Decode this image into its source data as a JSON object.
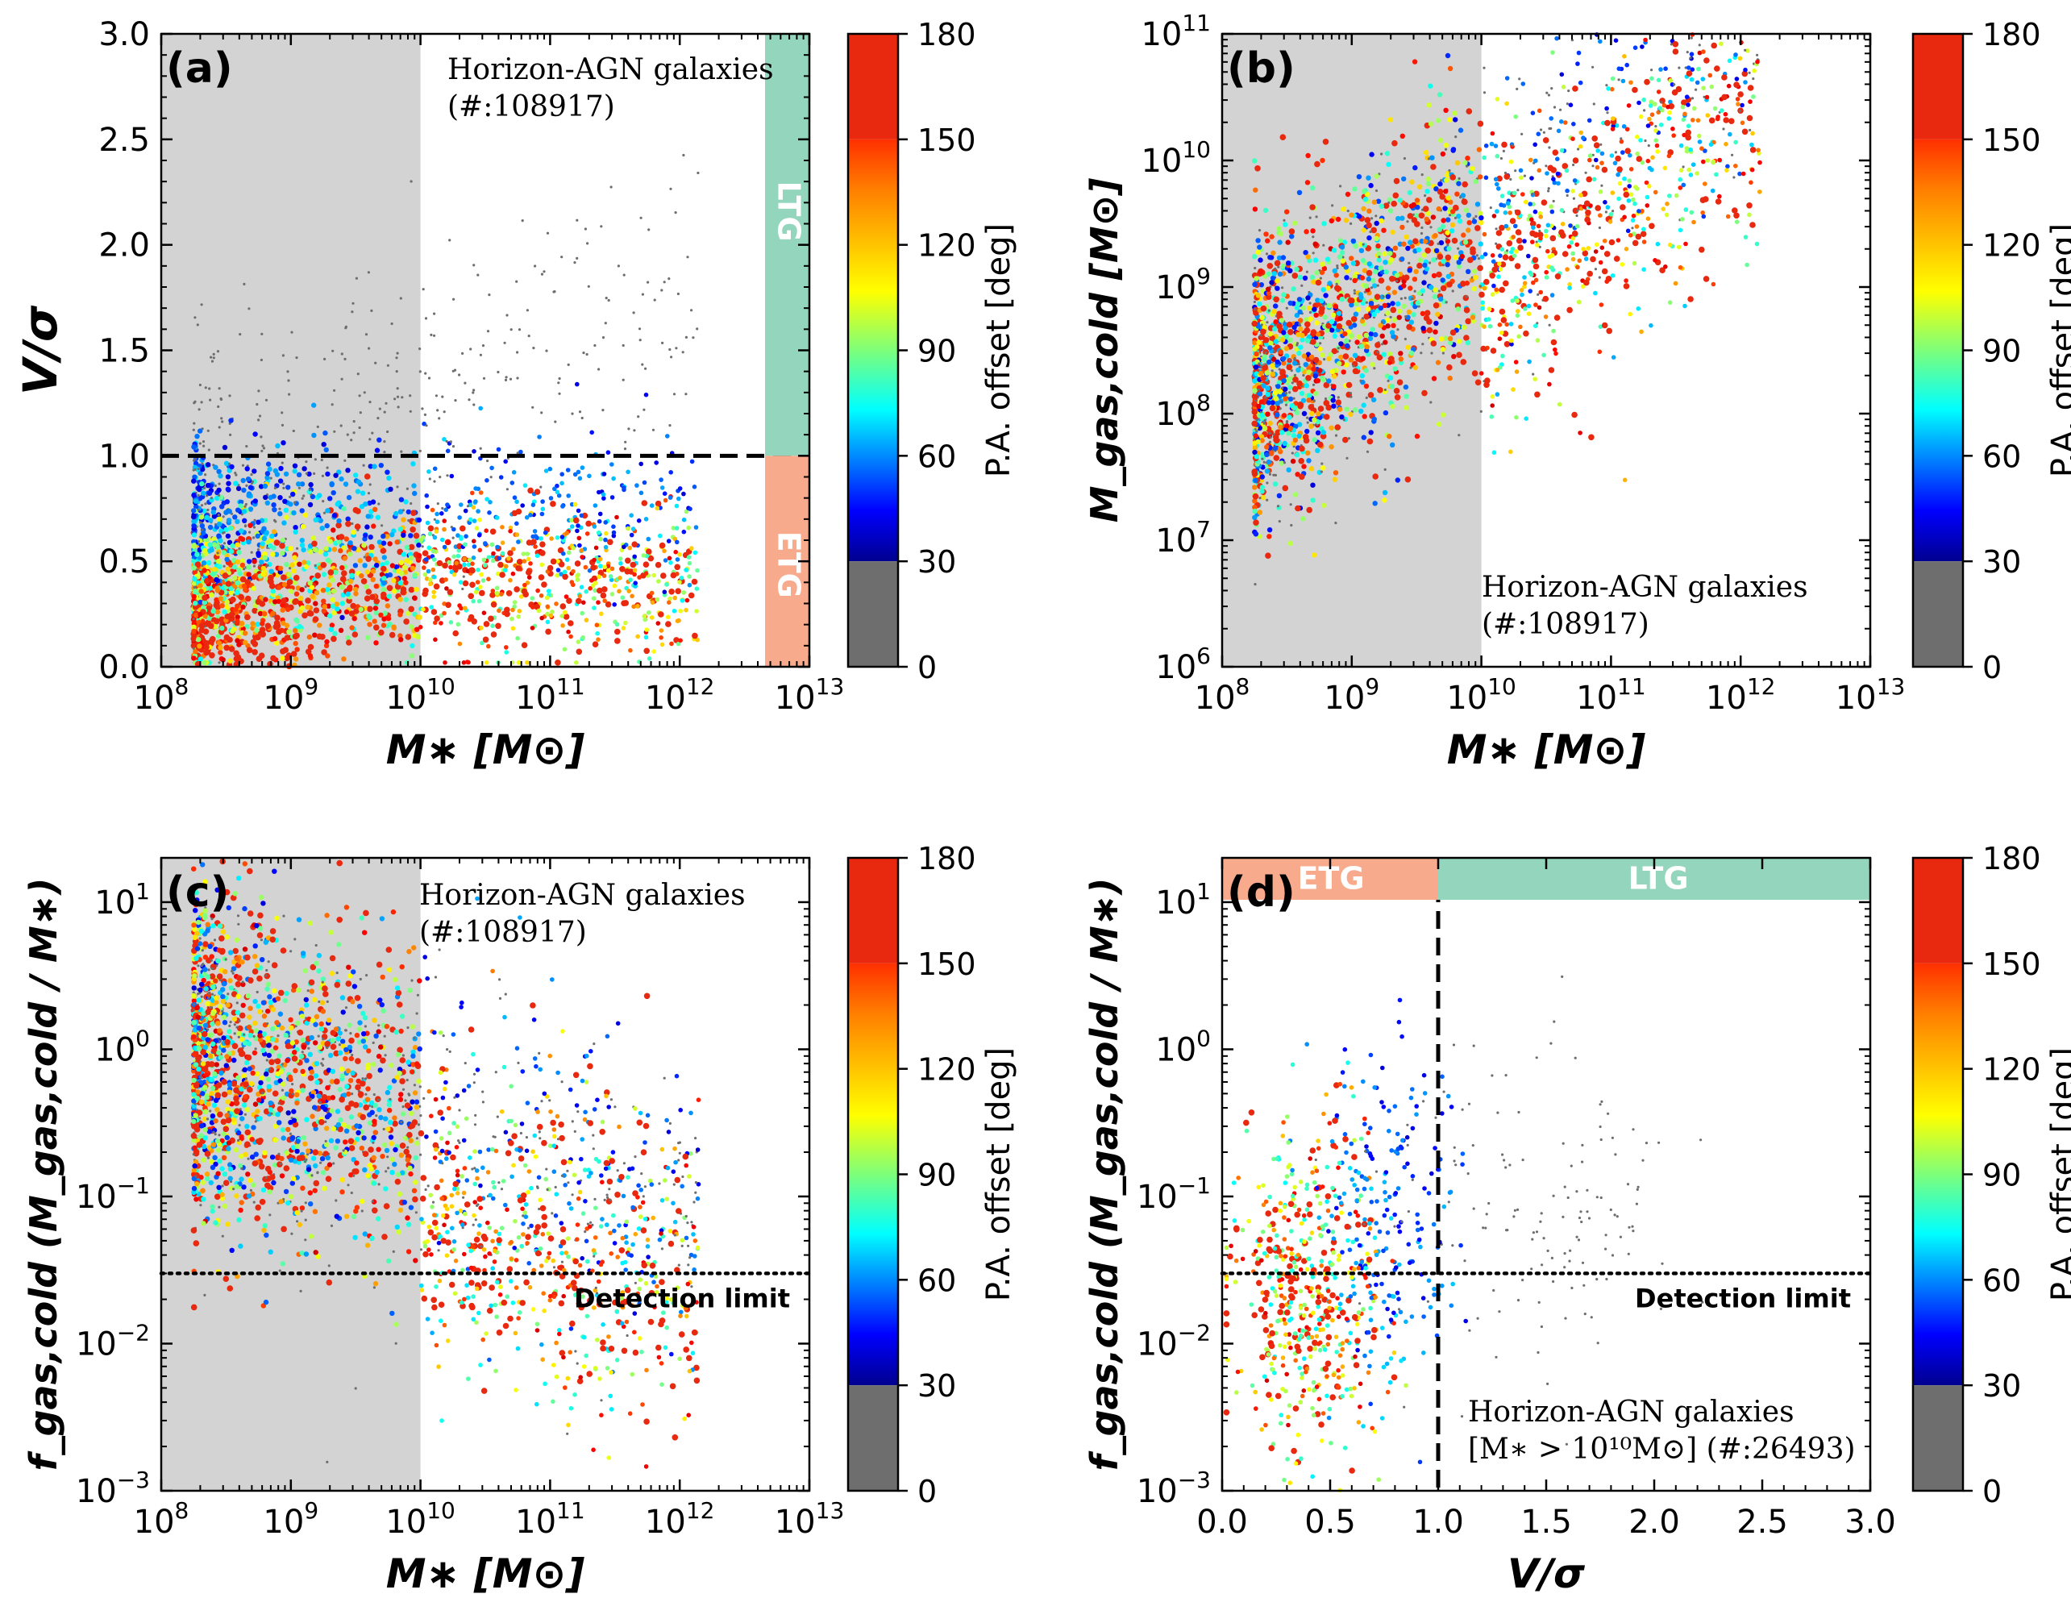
{
  "figure": {
    "colorbar_label": "P.A. offset [deg]",
    "colorbar_ticks": [
      "0",
      "30",
      "60",
      "90",
      "120",
      "150",
      "180"
    ],
    "colormap_note": "0-30 grey; 30-150 jet (blue-cyan-green-yellow); 150-180 red",
    "colors": {
      "grey": "#6e6e6e",
      "red": "#e8280f",
      "ltg": "#93d5bd",
      "etg": "#f7ab8c",
      "shade": "#d3d3d3"
    }
  },
  "chart_data": [
    {
      "type": "scatter",
      "panel_label": "(a)",
      "annotation_line1": "Horizon-AGN galaxies",
      "annotation_line2": "(#:108917)",
      "xlabel": "M∗ [M⊙]",
      "ylabel": "V/σ",
      "xscale": "log",
      "xlim": [
        100000000.0,
        10000000000000.0
      ],
      "x_ticks": [
        {
          "base": "10",
          "exp": "8"
        },
        {
          "base": "10",
          "exp": "9"
        },
        {
          "base": "10",
          "exp": "10"
        },
        {
          "base": "10",
          "exp": "11"
        },
        {
          "base": "10",
          "exp": "12"
        },
        {
          "base": "10",
          "exp": "13"
        }
      ],
      "yscale": "linear",
      "ylim": [
        0,
        3.0
      ],
      "y_ticks": [
        "0.0",
        "0.5",
        "1.0",
        "1.5",
        "2.0",
        "2.5",
        "3.0"
      ],
      "shaded_region_x": [
        100000000.0,
        10000000000.0
      ],
      "hline": {
        "y": 1.0,
        "style": "dashed"
      },
      "side_bands": [
        {
          "label": "LTG",
          "y_range": [
            1.0,
            3.0
          ]
        },
        {
          "label": "ETG",
          "y_range": [
            0,
            1.0
          ]
        }
      ],
      "n_galaxies": 108917
    },
    {
      "type": "scatter",
      "panel_label": "(b)",
      "annotation_line1": "Horizon-AGN galaxies",
      "annotation_line2": "(#:108917)",
      "xlabel": "M∗ [M⊙]",
      "ylabel": "M_gas,cold [M⊙]",
      "xscale": "log",
      "xlim": [
        100000000.0,
        10000000000000.0
      ],
      "x_ticks": [
        {
          "base": "10",
          "exp": "8"
        },
        {
          "base": "10",
          "exp": "9"
        },
        {
          "base": "10",
          "exp": "10"
        },
        {
          "base": "10",
          "exp": "11"
        },
        {
          "base": "10",
          "exp": "12"
        },
        {
          "base": "10",
          "exp": "13"
        }
      ],
      "yscale": "log",
      "ylim": [
        1000000.0,
        100000000000.0
      ],
      "y_ticks": [
        {
          "base": "10",
          "exp": "6"
        },
        {
          "base": "10",
          "exp": "7"
        },
        {
          "base": "10",
          "exp": "8"
        },
        {
          "base": "10",
          "exp": "9"
        },
        {
          "base": "10",
          "exp": "10"
        },
        {
          "base": "10",
          "exp": "11"
        }
      ],
      "shaded_region_x": [
        100000000.0,
        10000000000.0
      ],
      "n_galaxies": 108917
    },
    {
      "type": "scatter",
      "panel_label": "(c)",
      "annotation_line1": "Horizon-AGN galaxies",
      "annotation_line2": "(#:108917)",
      "detection_label": "Detection limit",
      "xlabel": "M∗ [M⊙]",
      "ylabel": "f_gas,cold (M_gas,cold / M∗)",
      "xscale": "log",
      "xlim": [
        100000000.0,
        10000000000000.0
      ],
      "x_ticks": [
        {
          "base": "10",
          "exp": "8"
        },
        {
          "base": "10",
          "exp": "9"
        },
        {
          "base": "10",
          "exp": "10"
        },
        {
          "base": "10",
          "exp": "11"
        },
        {
          "base": "10",
          "exp": "12"
        },
        {
          "base": "10",
          "exp": "13"
        }
      ],
      "yscale": "log",
      "ylim": [
        0.001,
        20
      ],
      "y_ticks": [
        {
          "base": "10",
          "exp": "−3"
        },
        {
          "base": "10",
          "exp": "−2"
        },
        {
          "base": "10",
          "exp": "−1"
        },
        {
          "base": "10",
          "exp": "0"
        },
        {
          "base": "10",
          "exp": "1"
        }
      ],
      "shaded_region_x": [
        100000000.0,
        10000000000.0
      ],
      "hline": {
        "y": 0.03,
        "style": "dotted"
      },
      "n_galaxies": 108917
    },
    {
      "type": "scatter",
      "panel_label": "(d)",
      "annotation_line1": "Horizon-AGN galaxies",
      "annotation_line2": "[M∗ > 10¹⁰M⊙] (#:26493)",
      "detection_label": "Detection limit",
      "xlabel": "V/σ",
      "ylabel": "f_gas,cold (M_gas,cold / M∗)",
      "xscale": "linear",
      "xlim": [
        0,
        3.0
      ],
      "x_ticks": [
        "0.0",
        "0.5",
        "1.0",
        "1.5",
        "2.0",
        "2.5",
        "3.0"
      ],
      "yscale": "log",
      "ylim": [
        0.001,
        20
      ],
      "y_ticks": [
        {
          "base": "10",
          "exp": "−3"
        },
        {
          "base": "10",
          "exp": "−2"
        },
        {
          "base": "10",
          "exp": "−1"
        },
        {
          "base": "10",
          "exp": "0"
        },
        {
          "base": "10",
          "exp": "1"
        }
      ],
      "vline": {
        "x": 1.0,
        "style": "dashed"
      },
      "hline": {
        "y": 0.03,
        "style": "dotted"
      },
      "top_bands": [
        {
          "label": "ETG",
          "x_range": [
            0,
            1.0
          ]
        },
        {
          "label": "LTG",
          "x_range": [
            1.0,
            3.0
          ]
        }
      ],
      "n_galaxies": 26493
    }
  ]
}
